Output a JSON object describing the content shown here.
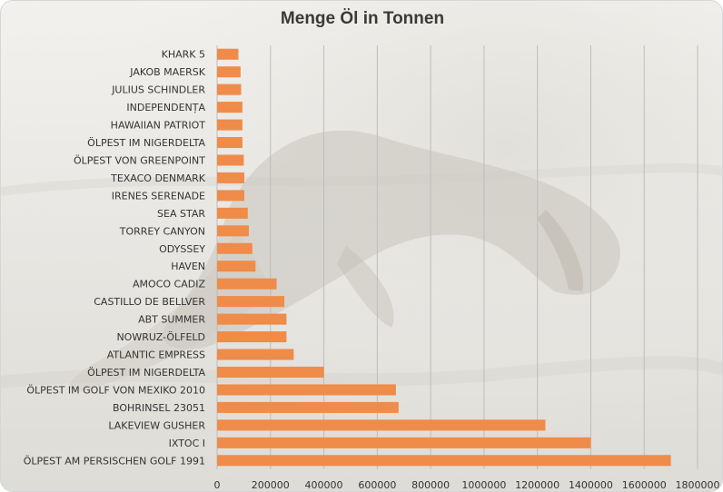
{
  "colors": {
    "bar": "#ef8c4a",
    "grid": "#bdbdbd",
    "text": "#333333",
    "title": "#3a3a3a"
  },
  "chart_data": {
    "type": "bar",
    "orientation": "horizontal",
    "title": "Menge Öl in Tonnen",
    "xlabel": "",
    "ylabel": "",
    "grid": "vertical",
    "legend": "none",
    "xlim": [
      0,
      1800000
    ],
    "ticks": [
      0,
      200000,
      400000,
      600000,
      800000,
      1000000,
      1200000,
      1400000,
      1600000,
      1800000
    ],
    "tick_labels": [
      "0",
      "200000",
      "400000",
      "600000",
      "800000",
      "1000000",
      "1200000",
      "1400000",
      "1600000",
      "1800000"
    ],
    "categories": [
      "KHARK 5",
      "JAKOB MAERSK",
      "JULIUS SCHINDLER",
      "INDEPENDENȚA",
      "HAWAIIAN PATRIOT",
      "ÖLPEST IM NIGERDELTA",
      "ÖLPEST VON GREENPOINT",
      "TEXACO DENMARK",
      "IRENES SERENADE",
      "SEA STAR",
      "TORREY CANYON",
      "ODYSSEY",
      "HAVEN",
      "AMOCO CADIZ",
      "CASTILLO DE BELLVER",
      "ABT SUMMER",
      "NOWRUZ-ÖLFELD",
      "ATLANTIC EMPRESS",
      "ÖLPEST IM NIGERDELTA",
      "ÖLPEST IM GOLF VON MEXIKO 2010",
      "BOHRINSEL 23051",
      "LAKEVIEW GUSHER",
      "IXTOC I",
      "ÖLPEST AM PERSISCHEN GOLF 1991"
    ],
    "values": [
      80000,
      88000,
      90000,
      95000,
      95000,
      95000,
      100000,
      102000,
      102000,
      115000,
      119000,
      132000,
      144000,
      223000,
      252000,
      260000,
      260000,
      287000,
      400000,
      670000,
      680000,
      1230000,
      1400000,
      1700000
    ]
  },
  "background": {
    "image": "photo of an oil-covered seabird on a beach"
  }
}
